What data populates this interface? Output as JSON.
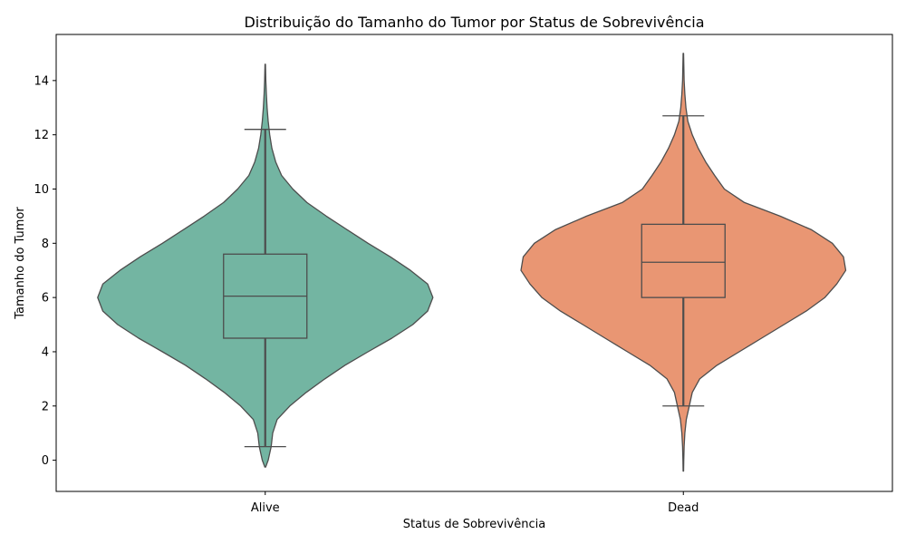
{
  "chart_data": {
    "type": "violin",
    "title": "Distribuição do Tamanho do Tumor por Status de Sobrevivência",
    "xlabel": "Status de Sobrevivência",
    "ylabel": "Tamanho do Tumor",
    "ylim": [
      -1.15,
      15.7
    ],
    "yticks": [
      0,
      2,
      4,
      6,
      8,
      10,
      12,
      14
    ],
    "grid": false,
    "categories": [
      "Alive",
      "Dead"
    ],
    "series": [
      {
        "category": "Alive",
        "color": "#73b5a2",
        "box": {
          "whisker_low": 0.5,
          "q1": 4.5,
          "median": 6.05,
          "q3": 7.6,
          "whisker_high": 12.2
        },
        "density": [
          [
            -0.25,
            0.005
          ],
          [
            0.0,
            0.04
          ],
          [
            0.5,
            0.08
          ],
          [
            1.0,
            0.1
          ],
          [
            1.5,
            0.16
          ],
          [
            2.0,
            0.33
          ],
          [
            2.5,
            0.55
          ],
          [
            3.0,
            0.8
          ],
          [
            3.5,
            1.07
          ],
          [
            4.0,
            1.38
          ],
          [
            4.5,
            1.7
          ],
          [
            5.0,
            1.98
          ],
          [
            5.5,
            2.18
          ],
          [
            6.0,
            2.25
          ],
          [
            6.5,
            2.18
          ],
          [
            7.0,
            1.95
          ],
          [
            7.5,
            1.68
          ],
          [
            8.0,
            1.38
          ],
          [
            8.5,
            1.1
          ],
          [
            9.0,
            0.82
          ],
          [
            9.5,
            0.56
          ],
          [
            10.0,
            0.37
          ],
          [
            10.5,
            0.22
          ],
          [
            11.0,
            0.14
          ],
          [
            11.5,
            0.09
          ],
          [
            12.0,
            0.06
          ],
          [
            12.5,
            0.04
          ],
          [
            13.0,
            0.025
          ],
          [
            13.5,
            0.015
          ],
          [
            14.0,
            0.008
          ],
          [
            14.6,
            0.003
          ]
        ]
      },
      {
        "category": "Dead",
        "color": "#e99673",
        "box": {
          "whisker_low": 2.0,
          "q1": 6.0,
          "median": 7.3,
          "q3": 8.7,
          "whisker_high": 12.7
        },
        "density": [
          [
            -0.4,
            0.003
          ],
          [
            0.0,
            0.005
          ],
          [
            0.5,
            0.01
          ],
          [
            1.0,
            0.02
          ],
          [
            1.5,
            0.04
          ],
          [
            2.0,
            0.08
          ],
          [
            2.5,
            0.12
          ],
          [
            3.0,
            0.22
          ],
          [
            3.5,
            0.45
          ],
          [
            4.0,
            0.75
          ],
          [
            4.5,
            1.05
          ],
          [
            5.0,
            1.35
          ],
          [
            5.5,
            1.65
          ],
          [
            6.0,
            1.9
          ],
          [
            6.5,
            2.06
          ],
          [
            7.0,
            2.18
          ],
          [
            7.5,
            2.15
          ],
          [
            8.0,
            2.0
          ],
          [
            8.5,
            1.72
          ],
          [
            9.0,
            1.3
          ],
          [
            9.5,
            0.82
          ],
          [
            10.0,
            0.55
          ],
          [
            10.5,
            0.42
          ],
          [
            11.0,
            0.3
          ],
          [
            11.5,
            0.2
          ],
          [
            12.0,
            0.12
          ],
          [
            12.5,
            0.06
          ],
          [
            13.0,
            0.035
          ],
          [
            13.5,
            0.02
          ],
          [
            14.0,
            0.01
          ],
          [
            15.0,
            0.003
          ]
        ]
      }
    ]
  }
}
